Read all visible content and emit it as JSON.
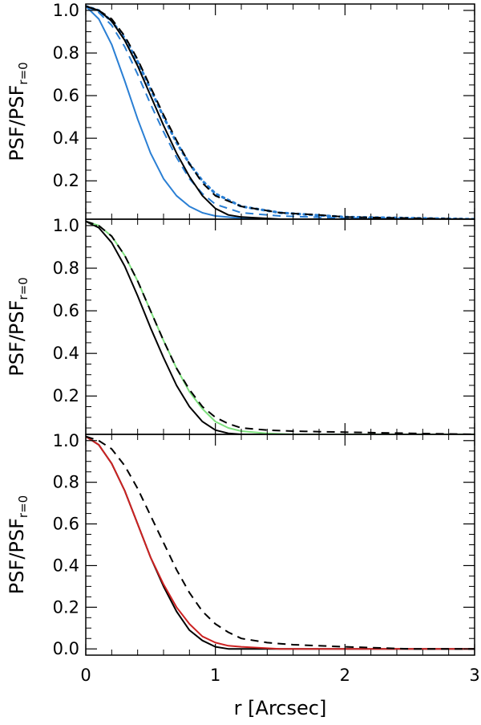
{
  "chart_data": [
    {
      "type": "line",
      "ylabel": "PSF/PSF",
      "ylabel_subscript": "r=0",
      "xlim": [
        0,
        3
      ],
      "ylim": [
        0.02,
        1.03
      ],
      "yticks": [
        0.2,
        0.4,
        0.6,
        0.8,
        1.0
      ],
      "ytick_labels": [
        "0.2",
        "0.4",
        "0.6",
        "0.8",
        "1.0"
      ],
      "series": [
        {
          "color": "#2a7fd4",
          "style": "solid",
          "x": [
            0,
            0.1,
            0.2,
            0.3,
            0.4,
            0.5,
            0.6,
            0.7,
            0.8,
            0.9,
            1.0,
            1.2,
            1.5,
            2.0,
            3.0
          ],
          "y": [
            1.02,
            0.96,
            0.84,
            0.67,
            0.49,
            0.33,
            0.21,
            0.13,
            0.08,
            0.05,
            0.035,
            0.025,
            0.02,
            0.02,
            0.02
          ]
        },
        {
          "color": "#2a7fd4",
          "style": "dashed",
          "x": [
            0,
            0.1,
            0.2,
            0.3,
            0.4,
            0.5,
            0.6,
            0.7,
            0.8,
            0.9,
            1.0,
            1.2,
            1.5,
            2.0,
            3.0
          ],
          "y": [
            1.02,
            0.99,
            0.93,
            0.83,
            0.7,
            0.56,
            0.43,
            0.31,
            0.21,
            0.14,
            0.09,
            0.05,
            0.035,
            0.025,
            0.02
          ]
        },
        {
          "color": "#2a7fd4",
          "style": "dotted",
          "x": [
            0,
            0.1,
            0.2,
            0.3,
            0.4,
            0.5,
            0.6,
            0.7,
            0.8,
            0.9,
            1.0,
            1.2,
            1.5,
            2.0,
            3.0
          ],
          "y": [
            1.02,
            1.0,
            0.95,
            0.87,
            0.76,
            0.63,
            0.5,
            0.38,
            0.28,
            0.2,
            0.14,
            0.08,
            0.05,
            0.03,
            0.02
          ]
        },
        {
          "color": "#000000",
          "style": "solid",
          "x": [
            0,
            0.1,
            0.2,
            0.3,
            0.4,
            0.5,
            0.6,
            0.7,
            0.8,
            0.9,
            1.0,
            1.1,
            1.2,
            1.5,
            2.0,
            3.0
          ],
          "y": [
            1.02,
            1.0,
            0.95,
            0.86,
            0.74,
            0.6,
            0.46,
            0.33,
            0.22,
            0.13,
            0.07,
            0.04,
            0.03,
            0.02,
            0.02,
            0.02
          ]
        },
        {
          "color": "#000000",
          "style": "dashed",
          "x": [
            0,
            0.1,
            0.2,
            0.3,
            0.4,
            0.5,
            0.6,
            0.7,
            0.8,
            0.9,
            1.0,
            1.2,
            1.5,
            1.8,
            2.0,
            2.5,
            3.0
          ],
          "y": [
            1.02,
            1.0,
            0.96,
            0.88,
            0.77,
            0.64,
            0.51,
            0.39,
            0.28,
            0.19,
            0.13,
            0.08,
            0.05,
            0.04,
            0.03,
            0.025,
            0.02
          ]
        }
      ]
    },
    {
      "type": "line",
      "ylabel": "PSF/PSF",
      "ylabel_subscript": "r=0",
      "xlim": [
        0,
        3
      ],
      "ylim": [
        0.02,
        1.03
      ],
      "yticks": [
        0.2,
        0.4,
        0.6,
        0.8,
        1.0
      ],
      "ytick_labels": [
        "0.2",
        "0.4",
        "0.6",
        "0.8",
        "1.0"
      ],
      "series": [
        {
          "color": "#000000",
          "style": "solid",
          "x": [
            0,
            0.1,
            0.2,
            0.3,
            0.4,
            0.5,
            0.6,
            0.7,
            0.8,
            0.9,
            1.0,
            1.1,
            1.2,
            1.5,
            2.0,
            3.0
          ],
          "y": [
            1.02,
            0.99,
            0.92,
            0.81,
            0.67,
            0.52,
            0.38,
            0.25,
            0.15,
            0.08,
            0.04,
            0.025,
            0.02,
            0.02,
            0.02,
            0.02
          ]
        },
        {
          "color": "#7ee07e",
          "style": "solid",
          "x": [
            0,
            0.1,
            0.2,
            0.3,
            0.4,
            0.5,
            0.6,
            0.7,
            0.8,
            0.9,
            1.0,
            1.1,
            1.2,
            1.4,
            1.6,
            2.0,
            2.5,
            3.0
          ],
          "y": [
            1.02,
            1.0,
            0.95,
            0.86,
            0.74,
            0.6,
            0.46,
            0.33,
            0.22,
            0.14,
            0.08,
            0.05,
            0.035,
            0.025,
            0.02,
            0.02,
            0.02,
            0.02
          ]
        },
        {
          "color": "#000000",
          "style": "dashed",
          "x": [
            0,
            0.1,
            0.2,
            0.3,
            0.4,
            0.5,
            0.6,
            0.7,
            0.8,
            0.9,
            1.0,
            1.1,
            1.2,
            1.4,
            1.6,
            2.0,
            2.5,
            3.0
          ],
          "y": [
            1.02,
            1.0,
            0.95,
            0.86,
            0.74,
            0.6,
            0.46,
            0.33,
            0.23,
            0.15,
            0.1,
            0.07,
            0.05,
            0.04,
            0.035,
            0.03,
            0.025,
            0.02
          ]
        }
      ]
    },
    {
      "type": "line",
      "xlabel": "r [Arcsec]",
      "ylabel": "PSF/PSF",
      "ylabel_subscript": "r=0",
      "xlim": [
        0,
        3
      ],
      "ylim": [
        -0.03,
        1.03
      ],
      "xticks": [
        0,
        1,
        2,
        3
      ],
      "xtick_labels": [
        "0",
        "1",
        "2",
        "3"
      ],
      "yticks": [
        0.0,
        0.2,
        0.4,
        0.6,
        0.8,
        1.0
      ],
      "ytick_labels": [
        "0.0",
        "0.2",
        "0.4",
        "0.6",
        "0.8",
        "1.0"
      ],
      "series": [
        {
          "color": "#000000",
          "style": "solid",
          "x": [
            0,
            0.1,
            0.2,
            0.3,
            0.4,
            0.5,
            0.6,
            0.7,
            0.8,
            0.9,
            1.0,
            1.1,
            1.2,
            1.5,
            2.0,
            3.0
          ],
          "y": [
            1.02,
            0.98,
            0.89,
            0.76,
            0.6,
            0.44,
            0.3,
            0.18,
            0.09,
            0.04,
            0.01,
            0.0,
            0.0,
            0.0,
            0.0,
            0.0
          ]
        },
        {
          "color": "#cc2222",
          "style": "solid",
          "x": [
            0,
            0.1,
            0.2,
            0.3,
            0.4,
            0.5,
            0.6,
            0.7,
            0.8,
            0.9,
            1.0,
            1.1,
            1.2,
            1.5,
            2.0,
            3.0
          ],
          "y": [
            1.02,
            0.98,
            0.89,
            0.76,
            0.6,
            0.44,
            0.31,
            0.2,
            0.12,
            0.06,
            0.03,
            0.015,
            0.01,
            0.0,
            0.0,
            0.0
          ]
        },
        {
          "color": "#000000",
          "style": "dashed",
          "x": [
            0,
            0.1,
            0.2,
            0.3,
            0.4,
            0.5,
            0.6,
            0.7,
            0.8,
            0.9,
            1.0,
            1.1,
            1.2,
            1.4,
            1.6,
            2.0,
            2.5,
            3.0
          ],
          "y": [
            1.02,
            1.0,
            0.96,
            0.88,
            0.77,
            0.64,
            0.51,
            0.38,
            0.27,
            0.18,
            0.12,
            0.08,
            0.05,
            0.03,
            0.02,
            0.01,
            0.0,
            0.0
          ]
        }
      ]
    }
  ]
}
